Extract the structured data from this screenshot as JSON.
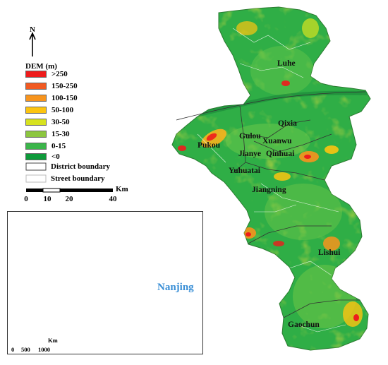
{
  "north_label": "N",
  "legend": {
    "title": "DEM (m)",
    "items": [
      {
        "label": ">250",
        "color": "#ee1c1c"
      },
      {
        "label": "150-250",
        "color": "#f15a22"
      },
      {
        "label": "100-150",
        "color": "#f7941d"
      },
      {
        "label": "50-100",
        "color": "#fcc410"
      },
      {
        "label": "30-50",
        "color": "#d7e21f"
      },
      {
        "label": "15-30",
        "color": "#8cc63f"
      },
      {
        "label": "0-15",
        "color": "#3bb54a"
      },
      {
        "label": "<0",
        "color": "#0e9a3a"
      }
    ],
    "district_boundary": "District boundary",
    "street_boundary": "Street boundary"
  },
  "scale_bar": {
    "unit": "Km",
    "ticks": [
      "0",
      "10",
      "20",
      "40"
    ]
  },
  "districts": [
    "Luhe",
    "Qixia",
    "Gulou",
    "Xuanwu",
    "Pukou",
    "Jianye",
    "Qinhuai",
    "Yuhuatai",
    "Jiangning",
    "Lishui",
    "Gaochun"
  ],
  "inset": {
    "highlight_label": "Nanjing",
    "highlight_color": "#3a8fd6",
    "scale_unit": "Km",
    "scale_ticks": [
      "0",
      "500",
      "1000"
    ]
  }
}
